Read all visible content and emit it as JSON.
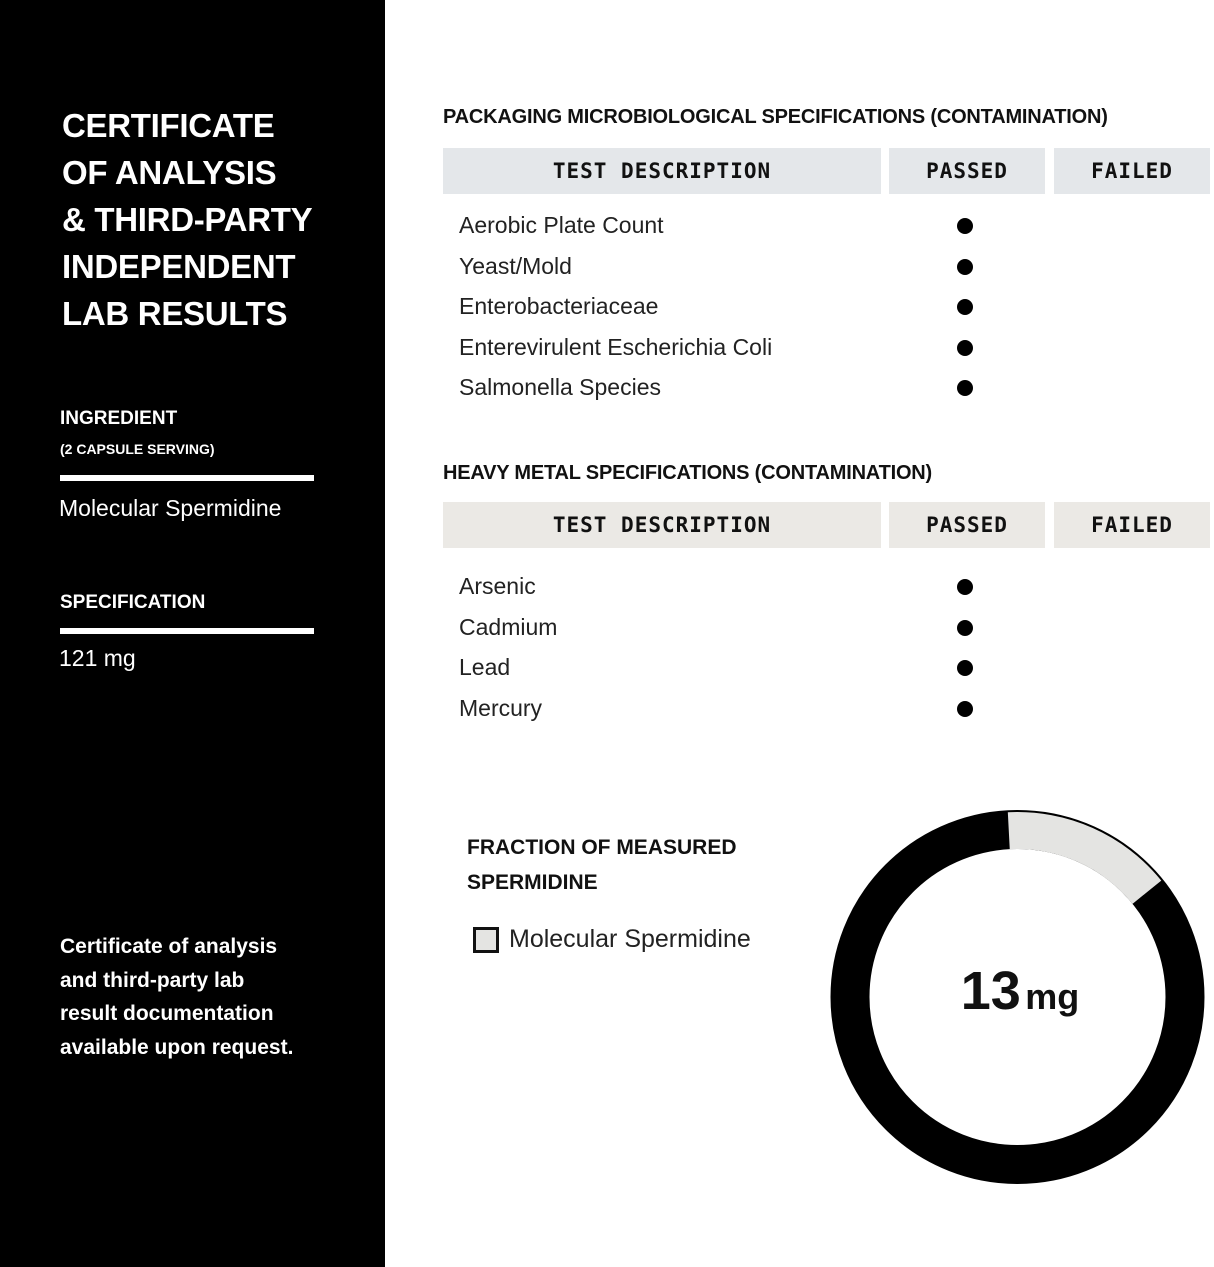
{
  "sidebar": {
    "title_lines": [
      "CERTIFICATE",
      "OF ANALYSIS",
      "& THIRD-PARTY",
      "INDEPENDENT",
      "LAB RESULTS"
    ],
    "ingredient_label": "INGREDIENT",
    "ingredient_sub": "(2 CAPSULE SERVING)",
    "ingredient_value": "Molecular Spermidine",
    "spec_label": "SPECIFICATION",
    "spec_value": "121 mg",
    "note_lines": [
      "Certificate of analysis",
      "and third-party lab",
      "result documentation",
      "available upon request."
    ]
  },
  "microbio": {
    "title": "PACKAGING MICROBIOLOGICAL SPECIFICATIONS (CONTAMINATION)",
    "headers": [
      "TEST DESCRIPTION",
      "PASSED",
      "FAILED"
    ],
    "header_color": "#e4e7ea",
    "rows": [
      {
        "name": "Aerobic Plate Count",
        "result": "passed"
      },
      {
        "name": "Yeast/Mold",
        "result": "passed"
      },
      {
        "name": "Enterobacteriaceae",
        "result": "passed"
      },
      {
        "name": "Enterevirulent Escherichia Coli",
        "result": "passed"
      },
      {
        "name": "Salmonella Species",
        "result": "passed"
      }
    ]
  },
  "metals": {
    "title": "HEAVY METAL SPECIFICATIONS (CONTAMINATION)",
    "headers": [
      "TEST DESCRIPTION",
      "PASSED",
      "FAILED"
    ],
    "header_color": "#ebe9e5",
    "rows": [
      {
        "name": "Arsenic",
        "result": "passed"
      },
      {
        "name": "Cadmium",
        "result": "passed"
      },
      {
        "name": "Lead",
        "result": "passed"
      },
      {
        "name": "Mercury",
        "result": "passed"
      }
    ]
  },
  "fraction": {
    "title_lines": [
      "FRACTION OF MEASURED",
      "SPERMIDINE"
    ],
    "legend": "Molecular Spermidine",
    "value": "13",
    "unit": "mg",
    "highlight_fraction": 0.15,
    "highlight_color": "#e4e4e2",
    "ring_color": "#000000"
  }
}
